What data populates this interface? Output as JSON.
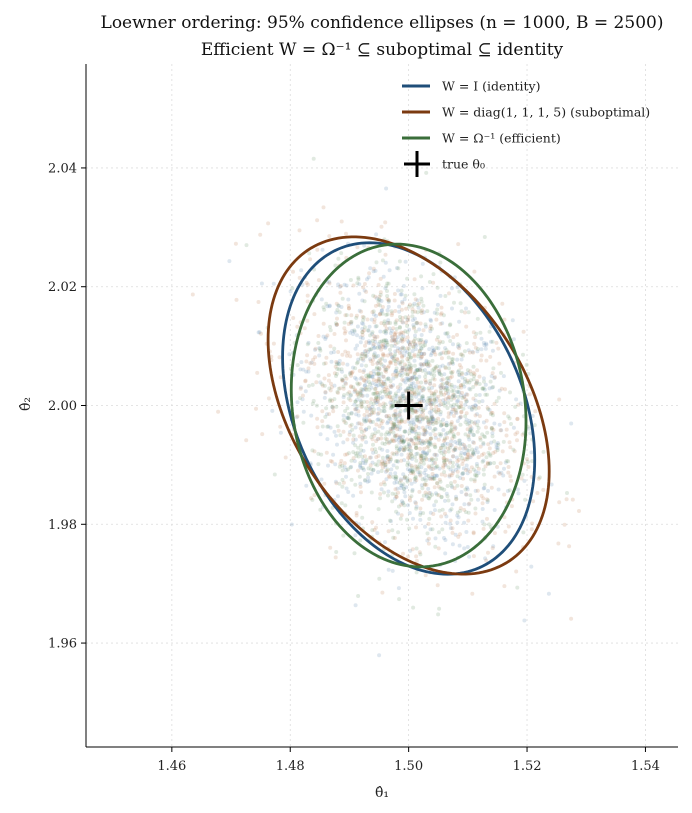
{
  "chart_data": {
    "type": "scatter",
    "title_line1": "Loewner ordering: 95% confidence ellipses (n = 1000, B = 2500)",
    "title_line2": "Efficient W = Ω⁻¹ ⊆ suboptimal ⊆ identity",
    "xlabel": "θ̂₁",
    "ylabel": "θ̂₂",
    "xlim": [
      1.4455,
      1.5455
    ],
    "ylim": [
      1.9425,
      2.0575
    ],
    "xticks": [
      1.46,
      1.48,
      1.5,
      1.52,
      1.54
    ],
    "xtick_labels": [
      "1.46",
      "1.48",
      "1.50",
      "1.52",
      "1.54"
    ],
    "yticks": [
      1.96,
      1.98,
      2.0,
      2.02,
      2.04
    ],
    "ytick_labels": [
      "1.96",
      "1.98",
      "2.00",
      "2.02",
      "2.04"
    ],
    "grid": true,
    "legend_position": "top-right",
    "true_value": {
      "label": "true θ₀",
      "x": 1.5,
      "y": 2.0
    },
    "series": [
      {
        "name": "W = I  (identity)",
        "color": "#1f4e79",
        "ellipse": {
          "cx": 1.5,
          "cy": 1.9995,
          "sd_x": 0.0087,
          "sd_y": 0.0114,
          "rho": -0.31
        },
        "cloud_color": "#4a78a8"
      },
      {
        "name": "W = diag(1, 1, 1, 5)  (suboptimal)",
        "color": "#7b3a10",
        "ellipse": {
          "cx": 1.5,
          "cy": 2.0,
          "sd_x": 0.0097,
          "sd_y": 0.0116,
          "rho": -0.39
        },
        "cloud_color": "#b5713e"
      },
      {
        "name": "W = Ω⁻¹  (efficient)",
        "color": "#3a6e3a",
        "ellipse": {
          "cx": 1.5,
          "cy": 2.0,
          "sd_x": 0.0081,
          "sd_y": 0.0111,
          "rho": -0.1
        },
        "cloud_color": "#5a8a5a"
      }
    ],
    "confidence_chi2": 5.991
  }
}
